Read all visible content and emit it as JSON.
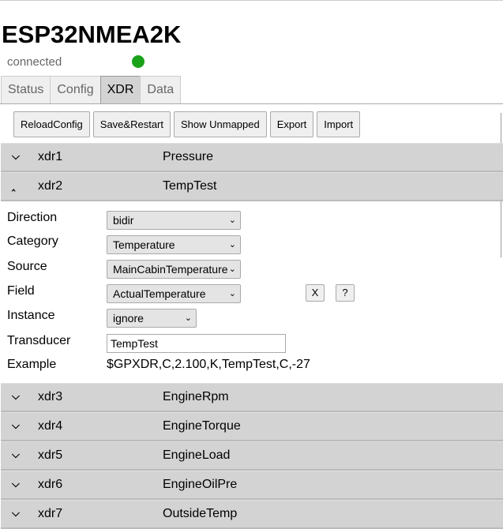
{
  "app": {
    "title": "ESP32NMEA2K",
    "status": "connected",
    "status_color": "#1aa31a"
  },
  "tabs": [
    {
      "label": "Status"
    },
    {
      "label": "Config"
    },
    {
      "label": "XDR",
      "active": true
    },
    {
      "label": "Data"
    }
  ],
  "toolbar": {
    "reload": "ReloadConfig",
    "save": "Save&Restart",
    "unmapped": "Show Unmapped",
    "export": "Export",
    "import": "Import"
  },
  "rows_top": [
    {
      "id": "xdr1",
      "name": "Pressure",
      "expanded": false
    },
    {
      "id": "xdr2",
      "name": "TempTest",
      "expanded": true
    }
  ],
  "detail": {
    "direction": {
      "label": "Direction",
      "value": "bidir"
    },
    "category": {
      "label": "Category",
      "value": "Temperature"
    },
    "source": {
      "label": "Source",
      "value": "MainCabinTemperature"
    },
    "field": {
      "label": "Field",
      "value": "ActualTemperature"
    },
    "instance": {
      "label": "Instance",
      "value": "ignore"
    },
    "transducer": {
      "label": "Transducer",
      "value": "TempTest"
    },
    "example": {
      "label": "Example",
      "value": "$GPXDR,C,2.100,K,TempTest,C,-27"
    },
    "clear_label": "X",
    "help_label": "?"
  },
  "rows_bottom": [
    {
      "id": "xdr3",
      "name": "EngineRpm"
    },
    {
      "id": "xdr4",
      "name": "EngineTorque"
    },
    {
      "id": "xdr5",
      "name": "EngineLoad"
    },
    {
      "id": "xdr6",
      "name": "EngineOilPre"
    },
    {
      "id": "xdr7",
      "name": "OutsideTemp"
    }
  ],
  "icons": {
    "collapsed": "chevron-down-icon",
    "expanded": "chevron-up-icon"
  }
}
